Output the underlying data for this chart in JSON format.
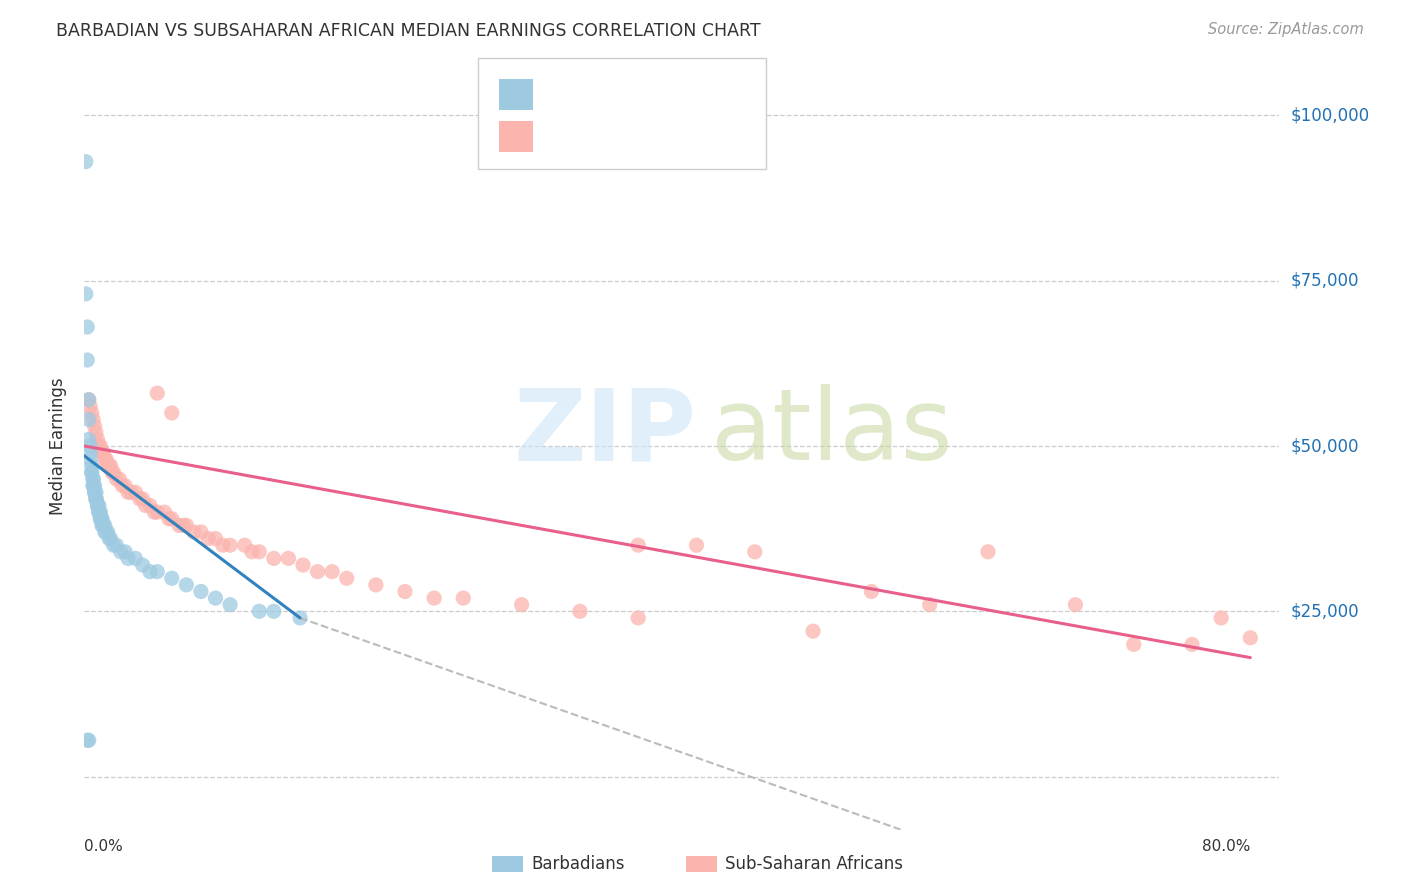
{
  "title": "BARBADIAN VS SUBSAHARAN AFRICAN MEDIAN EARNINGS CORRELATION CHART",
  "source": "Source: ZipAtlas.com",
  "ylabel": "Median Earnings",
  "y_tick_vals": [
    0,
    25000,
    50000,
    75000,
    100000
  ],
  "y_tick_labels": [
    "",
    "$25,000",
    "$50,000",
    "$75,000",
    "$100,000"
  ],
  "blue_color": "#9ecae1",
  "pink_color": "#fbb4ae",
  "trend_blue": "#3182bd",
  "trend_pink": "#e8608a",
  "trend_gray": "#bbbbbb",
  "label_color": "#2171b5",
  "title_color": "#333333",
  "source_color": "#999999",
  "xlim": [
    0.0,
    0.82
  ],
  "ylim": [
    -8000,
    108000
  ],
  "blue_trend_x": [
    0.0,
    0.148
  ],
  "blue_trend_y": [
    48500,
    24000
  ],
  "gray_trend_x": [
    0.148,
    0.56
  ],
  "gray_trend_y": [
    24000,
    -8000
  ],
  "pink_trend_x": [
    0.0,
    0.8
  ],
  "pink_trend_y": [
    50000,
    18000
  ],
  "barbadians_x": [
    0.001,
    0.001,
    0.002,
    0.002,
    0.003,
    0.003,
    0.003,
    0.004,
    0.004,
    0.004,
    0.005,
    0.005,
    0.005,
    0.006,
    0.006,
    0.006,
    0.006,
    0.007,
    0.007,
    0.007,
    0.008,
    0.008,
    0.008,
    0.008,
    0.009,
    0.009,
    0.009,
    0.01,
    0.01,
    0.01,
    0.01,
    0.011,
    0.011,
    0.011,
    0.012,
    0.012,
    0.012,
    0.013,
    0.013,
    0.014,
    0.014,
    0.015,
    0.016,
    0.017,
    0.018,
    0.02,
    0.022,
    0.025,
    0.028,
    0.03,
    0.035,
    0.04,
    0.045,
    0.05,
    0.06,
    0.07,
    0.08,
    0.09,
    0.1,
    0.12,
    0.13,
    0.148,
    0.002,
    0.003
  ],
  "barbadians_y": [
    93000,
    73000,
    68000,
    63000,
    57000,
    54000,
    51000,
    50000,
    49000,
    48000,
    47000,
    46000,
    46000,
    45000,
    45000,
    44000,
    44000,
    44000,
    43000,
    43000,
    43000,
    42000,
    42000,
    42000,
    41000,
    41000,
    41000,
    41000,
    40000,
    40000,
    40000,
    40000,
    39000,
    39000,
    39000,
    39000,
    38000,
    38000,
    38000,
    38000,
    37000,
    37000,
    37000,
    36000,
    36000,
    35000,
    35000,
    34000,
    34000,
    33000,
    33000,
    32000,
    31000,
    31000,
    30000,
    29000,
    28000,
    27000,
    26000,
    25000,
    25000,
    24000,
    5500,
    5500
  ],
  "subsaharan_x": [
    0.003,
    0.004,
    0.005,
    0.006,
    0.007,
    0.008,
    0.009,
    0.01,
    0.011,
    0.012,
    0.013,
    0.014,
    0.015,
    0.016,
    0.017,
    0.018,
    0.019,
    0.02,
    0.022,
    0.024,
    0.026,
    0.028,
    0.03,
    0.032,
    0.035,
    0.038,
    0.04,
    0.042,
    0.045,
    0.048,
    0.05,
    0.055,
    0.058,
    0.06,
    0.065,
    0.068,
    0.07,
    0.075,
    0.08,
    0.085,
    0.09,
    0.095,
    0.1,
    0.11,
    0.115,
    0.12,
    0.13,
    0.14,
    0.15,
    0.16,
    0.17,
    0.18,
    0.2,
    0.22,
    0.24,
    0.26,
    0.3,
    0.34,
    0.38,
    0.42,
    0.46,
    0.5,
    0.54,
    0.58,
    0.62,
    0.68,
    0.72,
    0.76,
    0.78,
    0.8,
    0.05,
    0.06,
    0.38
  ],
  "subsaharan_y": [
    57000,
    56000,
    55000,
    54000,
    53000,
    52000,
    51000,
    50000,
    50000,
    49000,
    49000,
    48000,
    48000,
    47000,
    47000,
    47000,
    46000,
    46000,
    45000,
    45000,
    44000,
    44000,
    43000,
    43000,
    43000,
    42000,
    42000,
    41000,
    41000,
    40000,
    40000,
    40000,
    39000,
    39000,
    38000,
    38000,
    38000,
    37000,
    37000,
    36000,
    36000,
    35000,
    35000,
    35000,
    34000,
    34000,
    33000,
    33000,
    32000,
    31000,
    31000,
    30000,
    29000,
    28000,
    27000,
    27000,
    26000,
    25000,
    24000,
    35000,
    34000,
    22000,
    28000,
    26000,
    34000,
    26000,
    20000,
    20000,
    24000,
    21000,
    58000,
    55000,
    35000
  ]
}
